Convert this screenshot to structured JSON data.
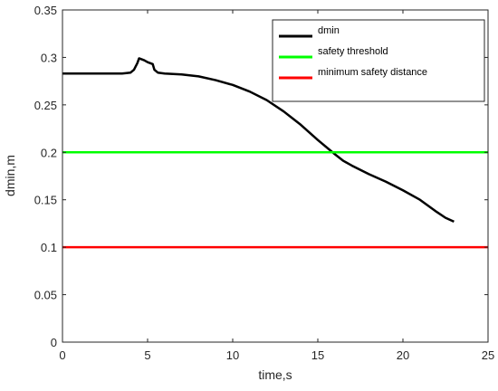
{
  "chart_data": {
    "type": "line",
    "xlabel": "time,s",
    "ylabel": "dmin,m",
    "xlim": [
      0,
      25
    ],
    "ylim": [
      0,
      0.35
    ],
    "xticks": [
      0,
      5,
      10,
      15,
      20,
      25
    ],
    "yticks": [
      0,
      0.05,
      0.1,
      0.15,
      0.2,
      0.25,
      0.3,
      0.35
    ],
    "xtick_labels": [
      "0",
      "5",
      "10",
      "15",
      "20",
      "25"
    ],
    "ytick_labels": [
      "0",
      "0.05",
      "0.1",
      "0.15",
      "0.2",
      "0.25",
      "0.3",
      "0.35"
    ],
    "grid": false,
    "legend_placement": "top-right",
    "series": [
      {
        "name": "dmin",
        "color": "#000000",
        "x": [
          0,
          3.5,
          4.0,
          4.2,
          4.4,
          4.5,
          4.8,
          5.0,
          5.3,
          5.4,
          5.6,
          6.0,
          7.0,
          8.0,
          9.0,
          10.0,
          11.0,
          12.0,
          13.0,
          14.0,
          15.0,
          16.0,
          16.5,
          17.0,
          18.0,
          19.0,
          20.0,
          21.0,
          22.0,
          22.5,
          23.0
        ],
        "y": [
          0.283,
          0.283,
          0.284,
          0.287,
          0.294,
          0.299,
          0.297,
          0.295,
          0.293,
          0.287,
          0.284,
          0.283,
          0.282,
          0.28,
          0.276,
          0.271,
          0.264,
          0.255,
          0.243,
          0.229,
          0.213,
          0.198,
          0.191,
          0.186,
          0.177,
          0.169,
          0.16,
          0.15,
          0.137,
          0.131,
          0.127
        ]
      },
      {
        "name": "safety threshold",
        "color": "#00ff00",
        "x": [
          0,
          25
        ],
        "y": [
          0.2,
          0.2
        ]
      },
      {
        "name": "minimum safety distance",
        "color": "#ff0000",
        "x": [
          0,
          25
        ],
        "y": [
          0.1,
          0.1
        ]
      }
    ]
  }
}
